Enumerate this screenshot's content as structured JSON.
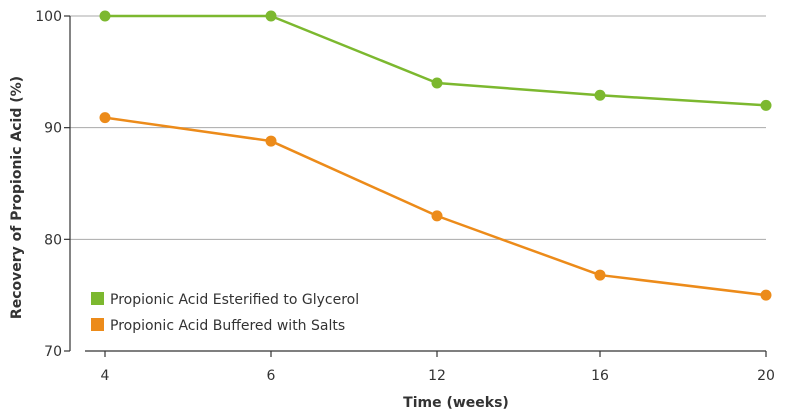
{
  "chart_data": {
    "type": "line",
    "title": "",
    "xlabel": "Time (weeks)",
    "ylabel": "Recovery of Propionic Acid (%)",
    "x": [
      4,
      6,
      12,
      16,
      20
    ],
    "x_tick_labels": [
      "4",
      "6",
      "12",
      "16",
      "20"
    ],
    "y_ticks": [
      70,
      80,
      90,
      100
    ],
    "y_tick_labels": [
      "70",
      "80",
      "90",
      "100"
    ],
    "ylim": [
      70,
      100
    ],
    "grid": "horizontal",
    "legend_position": "bottom-left",
    "series": [
      {
        "name": "Propionic Acid Esterified to Glycerol",
        "color": "#7cb82f",
        "values": [
          100,
          100,
          94,
          92.9,
          92
        ]
      },
      {
        "name": "Propionic Acid Buffered with Salts",
        "color": "#ec8b1a",
        "values": [
          90.9,
          88.8,
          82.1,
          76.8,
          75
        ]
      }
    ]
  }
}
